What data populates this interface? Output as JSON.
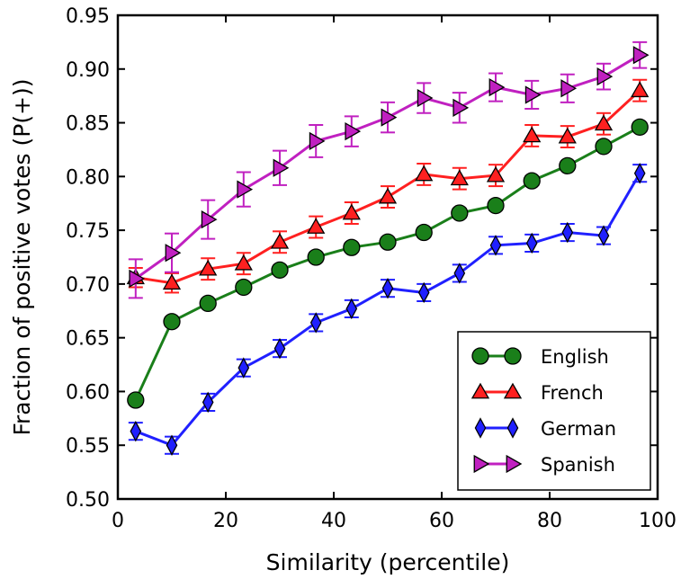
{
  "chart_data": {
    "type": "line",
    "xlabel": "Similarity (percentile)",
    "ylabel": "Fraction of positive votes (P(+))",
    "xlim": [
      0,
      100
    ],
    "ylim": [
      0.5,
      0.95
    ],
    "xticks": [
      "0",
      "20",
      "40",
      "60",
      "80",
      "100"
    ],
    "yticks": [
      "0.50",
      "0.55",
      "0.60",
      "0.65",
      "0.70",
      "0.75",
      "0.80",
      "0.85",
      "0.90",
      "0.95"
    ],
    "grid": false,
    "legend_position": "bottom-right",
    "x": [
      3.3,
      10,
      16.7,
      23.3,
      30,
      36.7,
      43.3,
      50,
      56.7,
      63.3,
      70,
      76.7,
      83.3,
      90,
      96.7
    ],
    "series": [
      {
        "name": "English",
        "marker": "circle",
        "color": "#1a7f1a",
        "values": [
          0.592,
          0.665,
          0.682,
          0.697,
          0.713,
          0.725,
          0.734,
          0.739,
          0.748,
          0.766,
          0.773,
          0.796,
          0.81,
          0.828,
          0.846
        ],
        "errors": [
          0.004,
          0.004,
          0.004,
          0.004,
          0.004,
          0.004,
          0.004,
          0.004,
          0.004,
          0.004,
          0.004,
          0.004,
          0.004,
          0.004,
          0.004
        ]
      },
      {
        "name": "French",
        "marker": "triangle-up",
        "color": "#ff2020",
        "values": [
          0.706,
          0.701,
          0.714,
          0.719,
          0.739,
          0.753,
          0.766,
          0.781,
          0.802,
          0.798,
          0.801,
          0.838,
          0.837,
          0.849,
          0.88
        ],
        "errors": [
          0.009,
          0.009,
          0.01,
          0.01,
          0.01,
          0.01,
          0.01,
          0.01,
          0.01,
          0.01,
          0.01,
          0.01,
          0.01,
          0.01,
          0.01
        ]
      },
      {
        "name": "German",
        "marker": "diamond",
        "color": "#2020ff",
        "values": [
          0.563,
          0.55,
          0.59,
          0.622,
          0.64,
          0.664,
          0.677,
          0.696,
          0.692,
          0.71,
          0.736,
          0.738,
          0.748,
          0.745,
          0.803
        ],
        "errors": [
          0.008,
          0.008,
          0.008,
          0.008,
          0.008,
          0.008,
          0.008,
          0.008,
          0.008,
          0.008,
          0.008,
          0.008,
          0.008,
          0.008,
          0.008
        ]
      },
      {
        "name": "Spanish",
        "marker": "triangle-right",
        "color": "#c020c0",
        "values": [
          0.705,
          0.729,
          0.76,
          0.788,
          0.808,
          0.833,
          0.842,
          0.855,
          0.873,
          0.864,
          0.883,
          0.876,
          0.882,
          0.893,
          0.913
        ],
        "errors": [
          0.018,
          0.018,
          0.018,
          0.016,
          0.016,
          0.015,
          0.014,
          0.014,
          0.014,
          0.014,
          0.013,
          0.013,
          0.013,
          0.012,
          0.012
        ]
      }
    ]
  }
}
